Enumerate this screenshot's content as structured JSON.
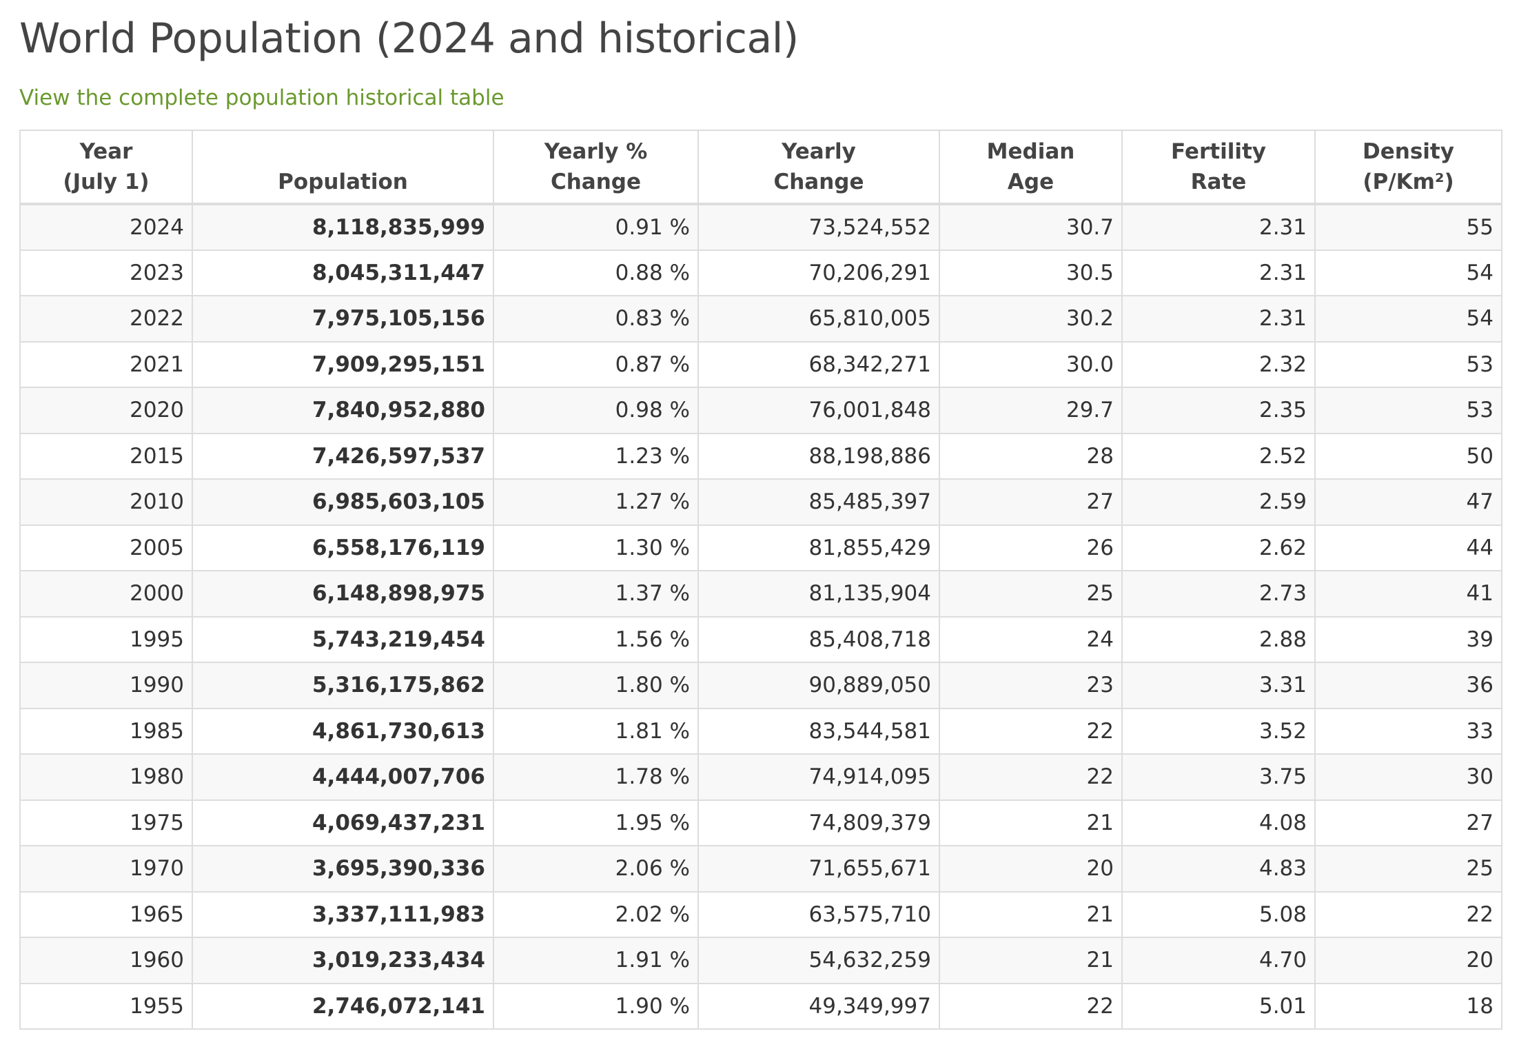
{
  "page": {
    "title": "World Population (2024 and historical)",
    "link_text": "View the complete population historical table"
  },
  "colors": {
    "link": "#6a992e",
    "title": "#444444",
    "border": "#dddddd",
    "stripe": "#f8f8f8"
  },
  "table": {
    "headers": [
      "Year\n(July 1)",
      "Population",
      "Yearly %\nChange",
      "Yearly\nChange",
      "Median\nAge",
      "Fertility\nRate",
      "Density\n(P/Km²)"
    ],
    "rows": [
      [
        "2024",
        "8,118,835,999",
        "0.91 %",
        "73,524,552",
        "30.7",
        "2.31",
        "55"
      ],
      [
        "2023",
        "8,045,311,447",
        "0.88 %",
        "70,206,291",
        "30.5",
        "2.31",
        "54"
      ],
      [
        "2022",
        "7,975,105,156",
        "0.83 %",
        "65,810,005",
        "30.2",
        "2.31",
        "54"
      ],
      [
        "2021",
        "7,909,295,151",
        "0.87 %",
        "68,342,271",
        "30.0",
        "2.32",
        "53"
      ],
      [
        "2020",
        "7,840,952,880",
        "0.98 %",
        "76,001,848",
        "29.7",
        "2.35",
        "53"
      ],
      [
        "2015",
        "7,426,597,537",
        "1.23 %",
        "88,198,886",
        "28",
        "2.52",
        "50"
      ],
      [
        "2010",
        "6,985,603,105",
        "1.27 %",
        "85,485,397",
        "27",
        "2.59",
        "47"
      ],
      [
        "2005",
        "6,558,176,119",
        "1.30 %",
        "81,855,429",
        "26",
        "2.62",
        "44"
      ],
      [
        "2000",
        "6,148,898,975",
        "1.37 %",
        "81,135,904",
        "25",
        "2.73",
        "41"
      ],
      [
        "1995",
        "5,743,219,454",
        "1.56 %",
        "85,408,718",
        "24",
        "2.88",
        "39"
      ],
      [
        "1990",
        "5,316,175,862",
        "1.80 %",
        "90,889,050",
        "23",
        "3.31",
        "36"
      ],
      [
        "1985",
        "4,861,730,613",
        "1.81 %",
        "83,544,581",
        "22",
        "3.52",
        "33"
      ],
      [
        "1980",
        "4,444,007,706",
        "1.78 %",
        "74,914,095",
        "22",
        "3.75",
        "30"
      ],
      [
        "1975",
        "4,069,437,231",
        "1.95 %",
        "74,809,379",
        "21",
        "4.08",
        "27"
      ],
      [
        "1970",
        "3,695,390,336",
        "2.06 %",
        "71,655,671",
        "20",
        "4.83",
        "25"
      ],
      [
        "1965",
        "3,337,111,983",
        "2.02 %",
        "63,575,710",
        "21",
        "5.08",
        "22"
      ],
      [
        "1960",
        "3,019,233,434",
        "1.91 %",
        "54,632,259",
        "21",
        "4.70",
        "20"
      ],
      [
        "1955",
        "2,746,072,141",
        "1.90 %",
        "49,349,997",
        "22",
        "5.01",
        "18"
      ]
    ]
  }
}
